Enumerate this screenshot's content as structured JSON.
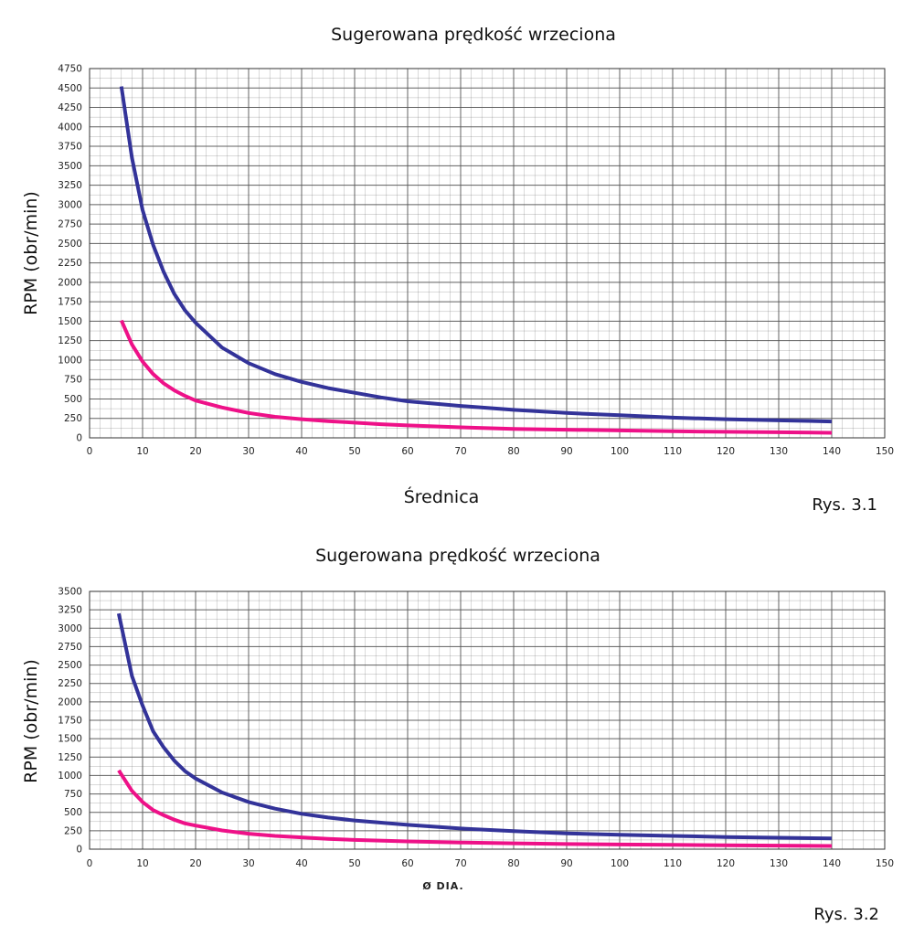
{
  "chart_data": [
    {
      "type": "line",
      "title": "Sugerowana prędkość wrzeciona",
      "xlabel": "Średnica",
      "ylabel": "RPM (obr/min)",
      "figure_label": "Rys. 3.1",
      "xlim": [
        0,
        150
      ],
      "ylim": [
        0,
        4750
      ],
      "x_ticks": [
        0,
        10,
        20,
        30,
        40,
        50,
        60,
        70,
        80,
        90,
        100,
        110,
        120,
        130,
        140,
        150
      ],
      "y_ticks": [
        0,
        250,
        500,
        750,
        1000,
        1250,
        1500,
        1750,
        2000,
        2250,
        2500,
        2750,
        3000,
        3250,
        3500,
        3750,
        4000,
        4250,
        4500,
        4750
      ],
      "grid": true,
      "colors": {
        "series_1": "#333399",
        "series_2": "#ee1188",
        "grid": "#555555"
      },
      "x": [
        6,
        8,
        10,
        12,
        14,
        16,
        18,
        20,
        25,
        30,
        35,
        40,
        45,
        50,
        55,
        60,
        70,
        80,
        90,
        100,
        110,
        120,
        130,
        140
      ],
      "series": [
        {
          "values": [
            4520,
            3600,
            2930,
            2480,
            2130,
            1850,
            1640,
            1480,
            1160,
            960,
            820,
            720,
            640,
            580,
            520,
            470,
            410,
            360,
            320,
            290,
            260,
            240,
            225,
            210
          ]
        },
        {
          "values": [
            1510,
            1200,
            980,
            820,
            700,
            610,
            540,
            480,
            390,
            320,
            270,
            240,
            215,
            195,
            175,
            160,
            135,
            115,
            105,
            95,
            85,
            78,
            72,
            65
          ]
        }
      ]
    },
    {
      "type": "line",
      "title": "Sugerowana prędkość wrzeciona",
      "xlabel": "Ø DIA.",
      "ylabel": "RPM (obr/min)",
      "figure_label": "Rys. 3.2",
      "xlim": [
        0,
        150
      ],
      "ylim": [
        0,
        3500
      ],
      "x_ticks": [
        0,
        10,
        20,
        30,
        40,
        50,
        60,
        70,
        80,
        90,
        100,
        110,
        120,
        130,
        140,
        150
      ],
      "y_ticks": [
        0,
        250,
        500,
        750,
        1000,
        1250,
        1500,
        1750,
        2000,
        2250,
        2500,
        2750,
        3000,
        3250,
        3500
      ],
      "grid": true,
      "colors": {
        "series_1": "#333399",
        "series_2": "#ee1188",
        "grid": "#555555"
      },
      "x": [
        5.5,
        8,
        10,
        12,
        14,
        16,
        18,
        20,
        25,
        30,
        35,
        40,
        45,
        50,
        60,
        70,
        80,
        90,
        100,
        110,
        120,
        130,
        140
      ],
      "series": [
        {
          "values": [
            3200,
            2350,
            1950,
            1600,
            1380,
            1200,
            1060,
            960,
            770,
            640,
            550,
            480,
            430,
            390,
            330,
            280,
            245,
            215,
            195,
            180,
            165,
            155,
            145
          ]
        },
        {
          "values": [
            1070,
            790,
            640,
            530,
            460,
            400,
            350,
            320,
            255,
            210,
            180,
            160,
            140,
            125,
            105,
            90,
            80,
            70,
            63,
            58,
            53,
            48,
            43
          ]
        }
      ]
    }
  ]
}
